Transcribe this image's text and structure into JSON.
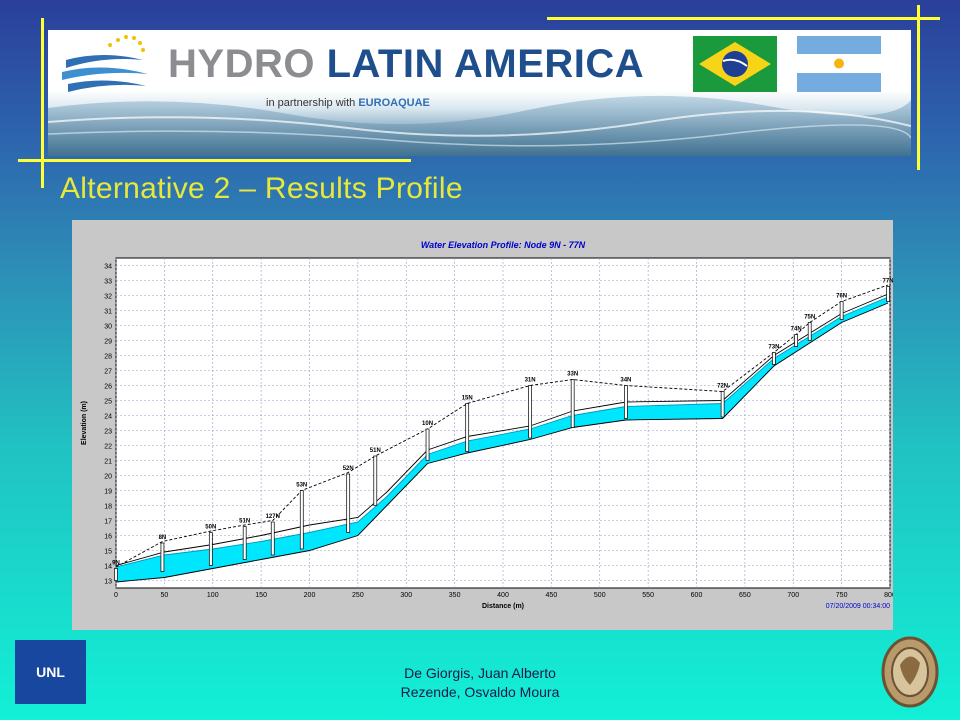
{
  "banner": {
    "title_part1": "HYDRO",
    "title_part2": "LATIN AMERICA",
    "partnership_text": "in partnership with",
    "partner_name": "EUROAQUAE",
    "flags": [
      "brazil-flag",
      "argentina-flag"
    ]
  },
  "slide": {
    "title": "Alternative 2 – Results Profile"
  },
  "chart_data": {
    "type": "line",
    "title": "Water Elevation Profile:  Node 9N - 77N",
    "xlabel": "Distance (m)",
    "ylabel": "Elevation (m)",
    "xlim": [
      0,
      800
    ],
    "ylim": [
      12.5,
      34.5
    ],
    "x_ticks": [
      0,
      50,
      100,
      150,
      200,
      250,
      300,
      350,
      400,
      450,
      500,
      550,
      600,
      650,
      700,
      750,
      800
    ],
    "y_ticks": [
      13,
      14,
      15,
      16,
      17,
      18,
      19,
      20,
      21,
      22,
      23,
      24,
      25,
      26,
      27,
      28,
      29,
      30,
      31,
      32,
      33,
      34
    ],
    "grid": true,
    "timestamp": "07/20/2009 00:34:00",
    "nodes": [
      {
        "name": "9N",
        "x": 0,
        "bottom": 13.0,
        "top": 13.8
      },
      {
        "name": "8N",
        "x": 48,
        "bottom": 13.6,
        "top": 15.5
      },
      {
        "name": "50N",
        "x": 98,
        "bottom": 14.0,
        "top": 16.2
      },
      {
        "name": "51N",
        "x": 133,
        "bottom": 14.4,
        "top": 16.6
      },
      {
        "name": "127N",
        "x": 162,
        "bottom": 14.7,
        "top": 16.9
      },
      {
        "name": "53N",
        "x": 192,
        "bottom": 15.1,
        "top": 19.0
      },
      {
        "name": "52N",
        "x": 240,
        "bottom": 16.2,
        "top": 20.1
      },
      {
        "name": "51N",
        "x": 268,
        "bottom": 18.0,
        "top": 21.3
      },
      {
        "name": "10N",
        "x": 322,
        "bottom": 21.0,
        "top": 23.1
      },
      {
        "name": "15N",
        "x": 363,
        "bottom": 21.6,
        "top": 24.8
      },
      {
        "name": "31N",
        "x": 428,
        "bottom": 22.5,
        "top": 26.0
      },
      {
        "name": "33N",
        "x": 472,
        "bottom": 23.2,
        "top": 26.4
      },
      {
        "name": "34N",
        "x": 527,
        "bottom": 23.8,
        "top": 26.0
      },
      {
        "name": "72N",
        "x": 627,
        "bottom": 23.9,
        "top": 25.6
      },
      {
        "name": "73N",
        "x": 680,
        "bottom": 27.4,
        "top": 28.2
      },
      {
        "name": "74N",
        "x": 703,
        "bottom": 28.6,
        "top": 29.4
      },
      {
        "name": "75N",
        "x": 717,
        "bottom": 29.0,
        "top": 30.2
      },
      {
        "name": "76N",
        "x": 750,
        "bottom": 30.4,
        "top": 31.6
      },
      {
        "name": "77N",
        "x": 798,
        "bottom": 31.6,
        "top": 32.6
      }
    ],
    "series": [
      {
        "name": "",
        "color": "#000000",
        "x": [
          0,
          50,
          100,
          150,
          200,
          250,
          280,
          322,
          363,
          428,
          472,
          527,
          627,
          680,
          750,
          798
        ],
        "values": [
          12.9,
          13.2,
          13.8,
          14.4,
          15.0,
          16.0,
          18.0,
          20.8,
          21.5,
          22.4,
          23.2,
          23.7,
          23.8,
          27.3,
          30.2,
          31.5
        ]
      },
      {
        "name": "",
        "color": "#00e6ff",
        "x": [
          0,
          50,
          100,
          150,
          200,
          250,
          280,
          322,
          363,
          428,
          472,
          527,
          627,
          680,
          750,
          798
        ],
        "values": [
          13.9,
          14.7,
          15.1,
          15.6,
          16.2,
          16.9,
          18.6,
          21.4,
          22.3,
          23.1,
          24.0,
          24.6,
          24.8,
          27.8,
          30.6,
          31.9
        ]
      },
      {
        "name": "",
        "color": "#000000",
        "x": [
          0,
          50,
          100,
          150,
          200,
          250,
          280,
          322,
          363,
          428,
          472,
          527,
          627,
          680,
          750,
          798
        ],
        "values": [
          14.0,
          14.9,
          15.4,
          16.0,
          16.7,
          17.2,
          18.9,
          21.7,
          22.6,
          23.3,
          24.3,
          24.9,
          25.0,
          28.0,
          30.8,
          32.1
        ]
      },
      {
        "name": "",
        "color": "#000000",
        "dashed": true,
        "x": [
          0,
          48,
          98,
          133,
          162,
          192,
          240,
          268,
          322,
          363,
          428,
          472,
          527,
          627,
          680,
          703,
          717,
          750,
          798
        ],
        "values": [
          13.9,
          15.6,
          16.3,
          16.7,
          17.0,
          19.0,
          20.2,
          21.3,
          23.1,
          24.8,
          26.0,
          26.4,
          26.0,
          25.6,
          28.2,
          29.4,
          30.2,
          31.6,
          32.7
        ]
      }
    ]
  },
  "footer": {
    "logo_left": "UNL",
    "author_line1": "De Giorgis, Juan Alberto",
    "author_line2": "Rezende, Osvaldo Moura"
  },
  "colors": {
    "title_yellow": "#e8e83a",
    "decor_lines": "#ffff33",
    "unl_blue": "#17479e",
    "chart_title_blue": "#0000cc",
    "water_fill": "#00e6ff"
  }
}
